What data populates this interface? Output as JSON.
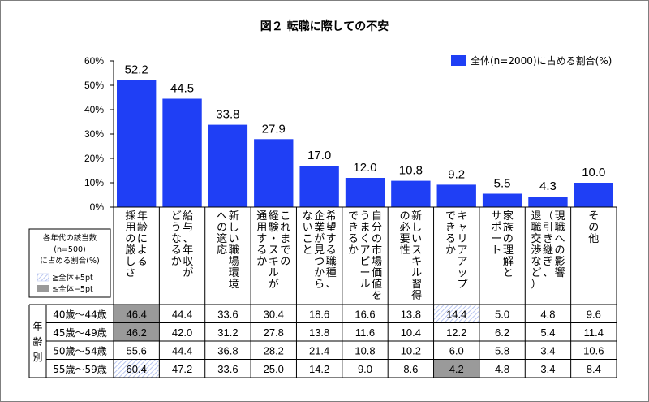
{
  "chart_data": {
    "type": "bar",
    "title": "図２ 転職に際しての不安",
    "ylim": [
      0,
      60
    ],
    "y_ticks": [
      "0%",
      "10%",
      "20%",
      "30%",
      "40%",
      "50%",
      "60%"
    ],
    "grid": false,
    "legend_position": "top-right",
    "categories": [
      [
        "年齢による",
        "採用の厳しさ"
      ],
      [
        "給与、年収が",
        "どうなるか"
      ],
      [
        "新しい職場環境",
        "への適応"
      ],
      [
        "これまでの",
        "経験・スキルが",
        "通用するか"
      ],
      [
        "希望する職種、",
        "企業が見つから",
        "ないこと"
      ],
      [
        "自分の市場価値を",
        "うまくアピール",
        "できるか"
      ],
      [
        "新しいスキル習得",
        "の必要性"
      ],
      [
        "キャリアアップ",
        "できるか"
      ],
      [
        "家族の理解と",
        "サポート"
      ],
      [
        "現職への影響",
        "（引き継ぎ、",
        "退職交渉など）"
      ],
      [
        "その他"
      ]
    ],
    "series": [
      {
        "name": "全体(n=2000)に占める割合(%)",
        "color": "#1f3ff5",
        "values": [
          52.2,
          44.5,
          33.8,
          27.9,
          17.0,
          12.0,
          10.8,
          9.2,
          5.5,
          4.3,
          10.0
        ],
        "labels": [
          "52.2",
          "44.5",
          "33.8",
          "27.9",
          "17.0",
          "12.0",
          "10.8",
          "9.2",
          "5.5",
          "4.3",
          "10.0"
        ]
      }
    ],
    "table": {
      "group_label": "年齢別",
      "rows": [
        {
          "label": "40歳～44歳",
          "values": [
            "46.4",
            "44.4",
            "33.6",
            "30.4",
            "18.6",
            "16.6",
            "13.8",
            "14.4",
            "5.0",
            "4.8",
            "9.6"
          ],
          "highlight": [
            "minus",
            null,
            null,
            null,
            null,
            null,
            null,
            "plus",
            null,
            null,
            null
          ]
        },
        {
          "label": "45歳～49歳",
          "values": [
            "46.2",
            "42.0",
            "31.2",
            "27.8",
            "13.8",
            "11.6",
            "10.4",
            "12.2",
            "6.2",
            "5.4",
            "11.4"
          ],
          "highlight": [
            "minus",
            null,
            null,
            null,
            null,
            null,
            null,
            null,
            null,
            null,
            null
          ]
        },
        {
          "label": "50歳～54歳",
          "values": [
            "55.6",
            "44.4",
            "36.8",
            "28.2",
            "21.4",
            "10.8",
            "10.2",
            "6.0",
            "5.8",
            "3.4",
            "10.6"
          ],
          "highlight": [
            null,
            null,
            null,
            null,
            null,
            null,
            null,
            null,
            null,
            null,
            null
          ]
        },
        {
          "label": "55歳～59歳",
          "values": [
            "60.4",
            "47.2",
            "33.6",
            "25.0",
            "14.2",
            "9.0",
            "8.6",
            "4.2",
            "4.8",
            "3.4",
            "8.4"
          ],
          "highlight": [
            "plus",
            null,
            null,
            null,
            null,
            null,
            null,
            "minus",
            null,
            null,
            null
          ]
        }
      ]
    },
    "side_legend": {
      "lines": [
        "各年代の該当数",
        "(n=500)",
        "に占める割合(%)"
      ],
      "plus_label": "≧全体+5pt",
      "minus_label": "≦全体−5pt"
    }
  }
}
